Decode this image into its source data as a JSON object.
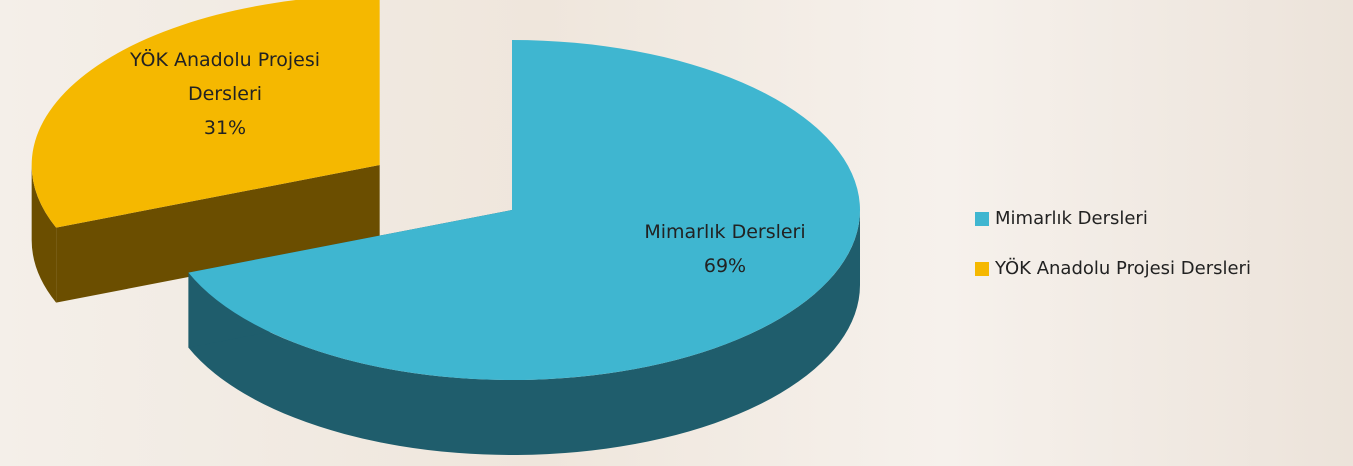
{
  "chart_data": {
    "type": "pie3d",
    "categories": [
      "Mimarlık Dersleri",
      "YÖK Anadolu Projesi Dersleri"
    ],
    "values": [
      69,
      31
    ],
    "value_labels": [
      "69%",
      "31%"
    ],
    "colors": [
      "#3fb6d0",
      "#f5b800"
    ],
    "legend": "right"
  }
}
